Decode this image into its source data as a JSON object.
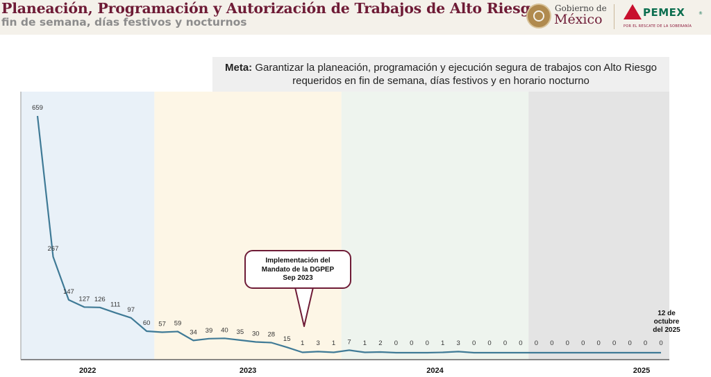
{
  "header": {
    "title": "Planeación, Programación y Autorización de Trabajos de Alto Riesgo",
    "subtitle": "fin de semana, días festivos y nocturnos",
    "logos": {
      "gobierno_line1": "Gobierno de",
      "gobierno_line2": "México",
      "pemex": "PEMEX",
      "pemex_reg": "®",
      "pemex_tagline": "POR EL RESCATE DE LA SOBERANÍA"
    }
  },
  "meta": {
    "label": "Meta:",
    "text": "Garantizar la planeación, programación y ejecución segura de trabajos con Alto Riesgo requeridos en fin de semana, días festivos y en horario nocturno"
  },
  "callout": {
    "line1": "Implementación del",
    "line2": "Mandato de la DGPEP",
    "line3": "Sep 2023"
  },
  "date_label": {
    "line1": "12 de octubre",
    "line2": "del 2025"
  },
  "chart_data": {
    "type": "line",
    "values": [
      659,
      267,
      147,
      127,
      126,
      111,
      97,
      60,
      57,
      59,
      34,
      39,
      40,
      35,
      30,
      28,
      15,
      1,
      3,
      1,
      7,
      1,
      2,
      0,
      0,
      0,
      1,
      3,
      0,
      0,
      0,
      0,
      0,
      0,
      0,
      0,
      0,
      0,
      0,
      0,
      0
    ],
    "labels": [
      "659",
      "267",
      "147",
      "127",
      "126",
      "111",
      "97",
      "60",
      "57",
      "59",
      "34",
      "39",
      "40",
      "35",
      "30",
      "28",
      "15",
      "1",
      "3",
      "1",
      "7",
      "1",
      "2",
      "0",
      "0",
      "0",
      "1",
      "3",
      "0",
      "0",
      "0",
      "0",
      "0",
      "0",
      "0",
      "0",
      "0",
      "0",
      "0",
      "0",
      "0"
    ],
    "year_bands": [
      {
        "year": "2022",
        "start": 0,
        "end": 7,
        "color": "#e9f1f8"
      },
      {
        "year": "2023",
        "start": 8,
        "end": 19,
        "color": "#fdf6e6"
      },
      {
        "year": "2024",
        "start": 20,
        "end": 31,
        "color": "#eef4ee"
      },
      {
        "year": "2025",
        "start": 32,
        "end": 40,
        "color": "#e4e4e4"
      }
    ],
    "line_color": "#3f7a96",
    "ylim": [
      0,
      700
    ]
  }
}
